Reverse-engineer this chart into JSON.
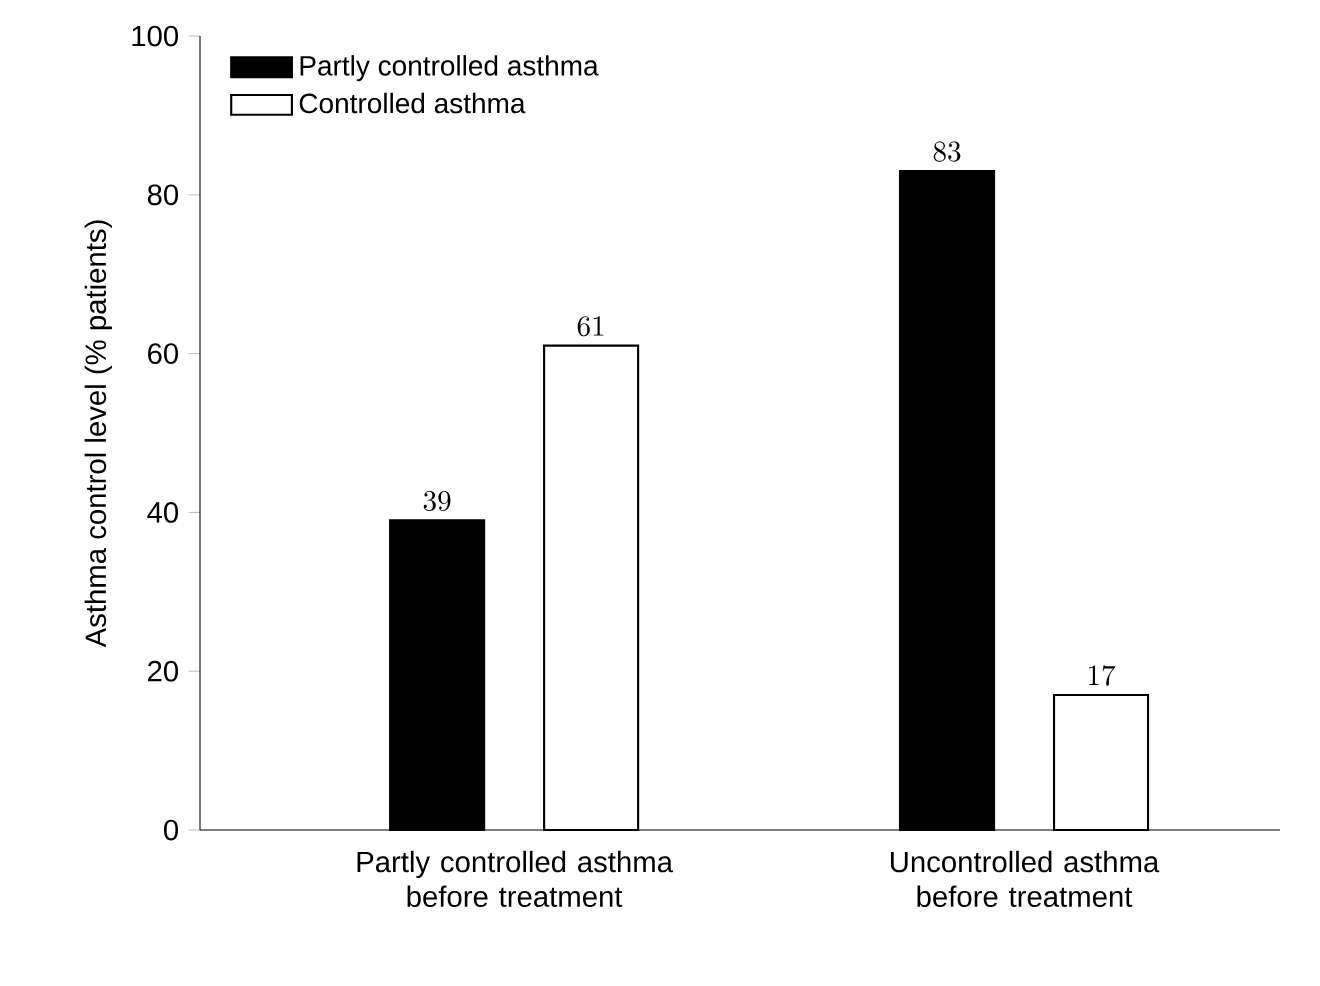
{
  "chart_data": {
    "type": "bar",
    "ylabel": "Asthma control level (% patients)",
    "categories": [
      "Partly controlled asthma before treatment",
      "Uncontrolled asthma before treatment"
    ],
    "series": [
      {
        "name": "Partly controlled asthma",
        "color": "#000000",
        "values": [
          39,
          83
        ]
      },
      {
        "name": "Controlled asthma",
        "color": "#ffffff",
        "values": [
          61,
          17
        ]
      }
    ],
    "ylim": [
      0,
      100
    ],
    "yticks": [
      0,
      20,
      40,
      60,
      80,
      100
    ],
    "data_labels": true,
    "legend": "top left"
  }
}
